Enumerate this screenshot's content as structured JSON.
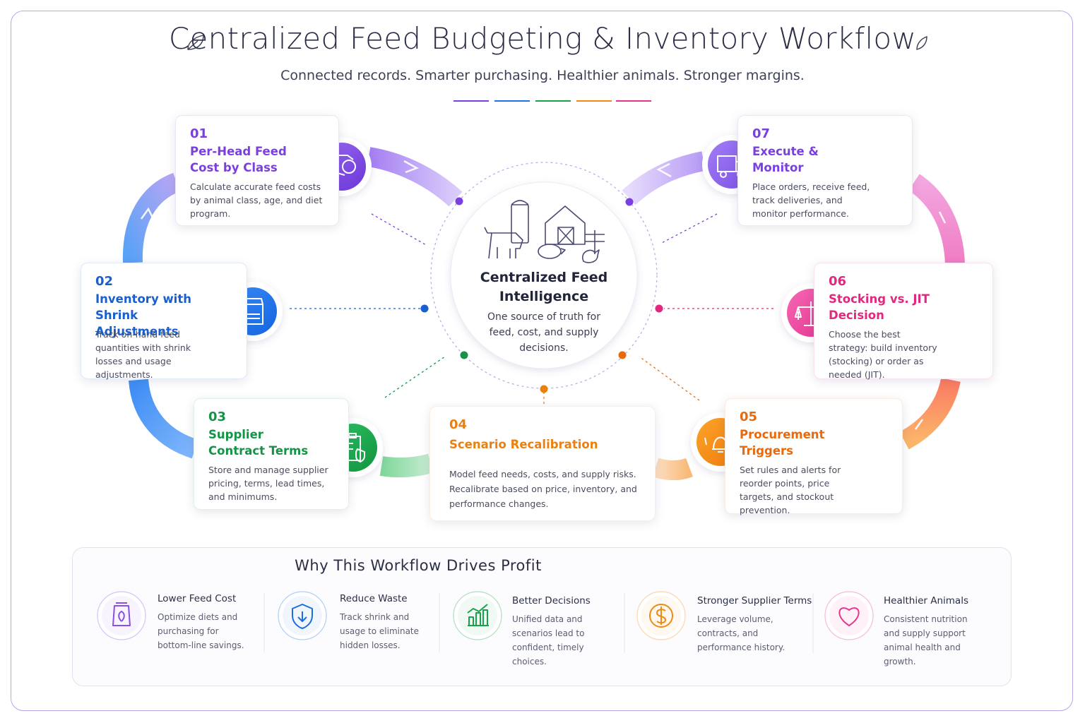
{
  "header": {
    "title": "Centralized Feed Budgeting & Inventory Workflow",
    "subtitle": "Connected records. Smarter purchasing. Healthier animals. Stronger margins."
  },
  "center": {
    "title": "Centralized Feed Intelligence",
    "text": "One source of truth for feed, cost, and supply decisions."
  },
  "steps": [
    {
      "number": "01",
      "title": "Per-Head Feed Cost by Class",
      "text": "Calculate accurate feed costs by animal class, age, and diet program."
    },
    {
      "number": "02",
      "title": "Inventory with Shrink Adjustments",
      "text": "Track on-hand feed quantities with shrink losses and usage adjustments."
    },
    {
      "number": "03",
      "title": "Supplier Contract Terms",
      "text": "Store and manage supplier pricing, terms, lead times, and minimums."
    },
    {
      "number": "04",
      "title": "Scenario Recalibration",
      "text": "Model feed needs, costs, and supply risks. Recalibrate based on price, inventory, and performance changes."
    },
    {
      "number": "05",
      "title": "Procurement Triggers",
      "text": "Set rules and alerts for reorder points, price targets, and stockout prevention."
    },
    {
      "number": "06",
      "title": "Stocking vs. JIT Decision",
      "text": "Choose the best strategy: build inventory (stocking) or order as needed (JIT)."
    },
    {
      "number": "07",
      "title": "Execute & Monitor",
      "text": "Place orders, receive feed, track deliveries, and monitor performance."
    }
  ],
  "benefits": {
    "title": "Why This Workflow Drives Profit",
    "items": [
      {
        "title": "Lower Feed Cost",
        "text": "Optimize diets and purchasing for bottom-line savings."
      },
      {
        "title": "Reduce Waste",
        "text": "Track shrink and usage to eliminate hidden losses."
      },
      {
        "title": "Better Decisions",
        "text": "Unified data and scenarios lead to confident, timely choices."
      },
      {
        "title": "Stronger Supplier Terms",
        "text": "Leverage volume, contracts, and performance history."
      },
      {
        "title": "Healthier Animals",
        "text": "Consistent nutrition and supply support animal health and growth."
      }
    ]
  }
}
